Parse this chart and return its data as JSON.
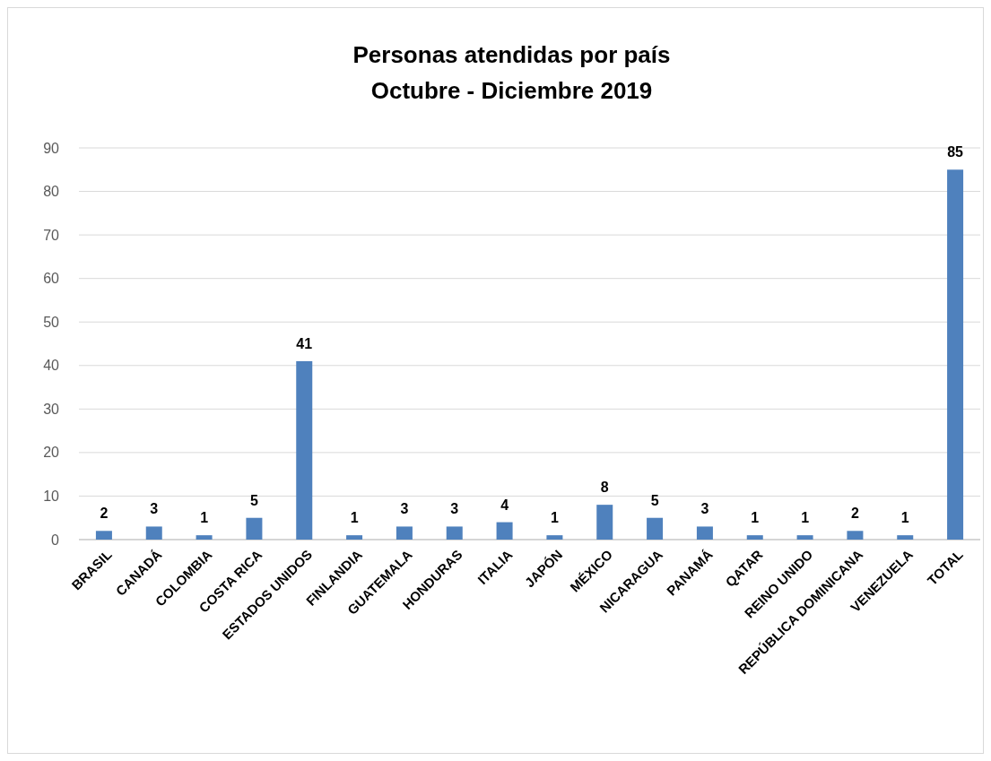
{
  "chart_data": {
    "type": "bar",
    "title": "Personas atendidas por país\nOctubre - Diciembre 2019",
    "categories": [
      "BRASIL",
      "CANADÁ",
      "COLOMBIA",
      "COSTA RICA",
      "ESTADOS UNIDOS",
      "FINLANDIA",
      "GUATEMALA",
      "HONDURAS",
      "ITALIA",
      "JAPÓN",
      "MÉXICO",
      "NICARAGUA",
      "PANAMÁ",
      "QATAR",
      "REINO UNIDO",
      "REPÚBLICA DOMINICANA",
      "VENEZUELA",
      "TOTAL"
    ],
    "values": [
      2,
      3,
      1,
      5,
      41,
      1,
      3,
      3,
      4,
      1,
      8,
      5,
      3,
      1,
      1,
      2,
      1,
      85
    ],
    "color": "#4f81bd",
    "ylim": [
      0,
      90
    ],
    "yticks": [
      0,
      10,
      20,
      30,
      40,
      50,
      60,
      70,
      80,
      90
    ],
    "grid": "y",
    "data_labels": true
  }
}
